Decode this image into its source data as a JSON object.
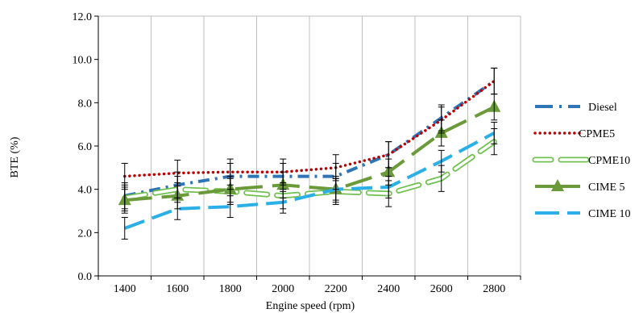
{
  "chart_data": {
    "type": "line",
    "title": "",
    "xlabel": "Engine speed (rpm)",
    "ylabel": "BTE (%)",
    "categories": [
      "1400",
      "1600",
      "1800",
      "2000",
      "2200",
      "2400",
      "2600",
      "2800"
    ],
    "ylim": [
      0,
      12
    ],
    "yticks": [
      "0.0",
      "2.0",
      "4.0",
      "6.0",
      "8.0",
      "10.0",
      "12.0"
    ],
    "grid": "vertical",
    "legend": "right",
    "series": [
      {
        "name": "Diesel",
        "values": [
          3.7,
          4.2,
          4.6,
          4.6,
          4.6,
          5.6,
          7.3,
          9.0
        ],
        "err": [
          0.6,
          0.6,
          0.6,
          0.6,
          0.6,
          0.6,
          0.6,
          0.6
        ],
        "color": "#2e75b6",
        "style": "dashdot"
      },
      {
        "name": "CPME5",
        "values": [
          4.6,
          4.75,
          4.8,
          4.8,
          5.0,
          5.6,
          7.2,
          9.0
        ],
        "err": [
          0.6,
          0.6,
          0.6,
          0.6,
          0.6,
          0.6,
          0.6,
          0.6
        ],
        "color": "#c00000",
        "style": "dotted"
      },
      {
        "name": "CPME10",
        "values": [
          3.6,
          4.0,
          3.9,
          3.7,
          3.9,
          3.8,
          4.5,
          6.2
        ],
        "err": [
          0.6,
          0.6,
          0.6,
          0.6,
          0.6,
          0.6,
          0.6,
          0.6
        ],
        "color": "#70c050",
        "style": "hollow"
      },
      {
        "name": "CIME 5",
        "values": [
          3.5,
          3.7,
          4.0,
          4.2,
          4.0,
          4.8,
          6.6,
          7.8
        ],
        "err": [
          0.6,
          0.6,
          0.6,
          0.6,
          0.6,
          0.6,
          0.6,
          0.6
        ],
        "color": "#6a9a3a",
        "style": "triangle"
      },
      {
        "name": "CIME 10",
        "values": [
          2.2,
          3.1,
          3.2,
          3.4,
          4.0,
          4.1,
          5.3,
          6.6
        ],
        "err": [
          0.5,
          0.5,
          0.5,
          0.5,
          0.5,
          0.5,
          0.5,
          0.5
        ],
        "color": "#2ab0e6",
        "style": "dashed"
      }
    ]
  }
}
